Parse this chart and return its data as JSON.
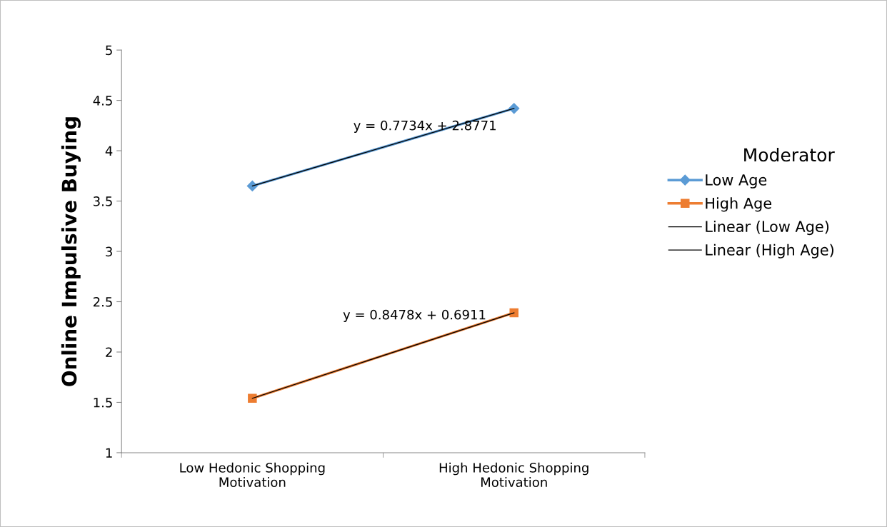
{
  "chart_data": {
    "type": "line",
    "ylabel": "Online Impulsive Buying",
    "legend_title": "Moderator",
    "categories": [
      "Low Hedonic Shopping\nMotivation",
      "High Hedonic Shopping\nMotivation"
    ],
    "series": [
      {
        "name": "Low Age",
        "color": "#5b9bd5",
        "values": [
          3.65,
          4.42
        ],
        "marker": "diamond"
      },
      {
        "name": "High Age",
        "color": "#ed7d31",
        "values": [
          1.54,
          2.39
        ],
        "marker": "square"
      },
      {
        "name": "Linear (Low Age)",
        "color": "#000000",
        "values": [
          3.65,
          4.42
        ],
        "marker": "none"
      },
      {
        "name": "Linear (High Age)",
        "color": "#000000",
        "values": [
          1.54,
          2.39
        ],
        "marker": "none"
      }
    ],
    "ylim": [
      1,
      5
    ],
    "yticks": [
      1,
      1.5,
      2,
      2.5,
      3,
      3.5,
      4,
      4.5,
      5
    ],
    "grid": false,
    "legend": "right",
    "annotations": [
      "y = 0.7734x + 2.8771",
      "y = 0.8478x + 0.6911"
    ]
  }
}
